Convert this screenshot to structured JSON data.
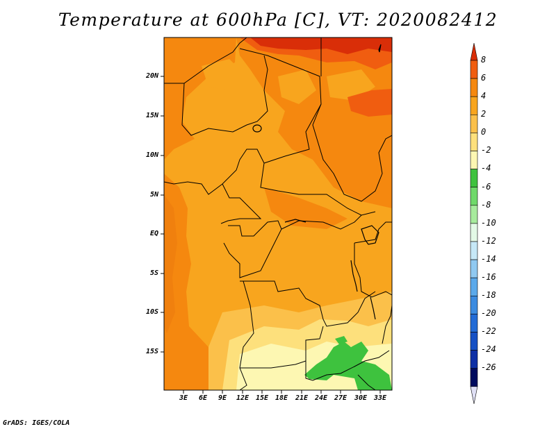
{
  "title": "Temperature at 600hPa [C], VT: 2020082412",
  "credit": "GrADS: IGES/COLA",
  "map": {
    "lat_labels": [
      "20N",
      "15N",
      "10N",
      "5N",
      "EQ",
      "5S",
      "10S",
      "15S"
    ],
    "lon_labels": [
      "3E",
      "6E",
      "9E",
      "12E",
      "15E",
      "18E",
      "21E",
      "24E",
      "27E",
      "30E",
      "33E"
    ]
  },
  "colorbar": {
    "labels": [
      "8",
      "6",
      "4",
      "2",
      "0",
      "-2",
      "-4",
      "-6",
      "-8",
      "-10",
      "-12",
      "-14",
      "-16",
      "-18",
      "-20",
      "-22",
      "-24",
      "-26"
    ],
    "colors": [
      "#d92e08",
      "#f05d10",
      "#f5880f",
      "#f8a51e",
      "#fbc04a",
      "#fde07c",
      "#fdf7b2",
      "#3ec23e",
      "#6fd96a",
      "#a7eb9d",
      "#e3f9e6",
      "#c6e8f7",
      "#90c9f1",
      "#5ba9ea",
      "#3b8be0",
      "#226bd6",
      "#1550c4",
      "#0d2fa5",
      "#000b5e",
      "#e0e0f5"
    ]
  }
}
